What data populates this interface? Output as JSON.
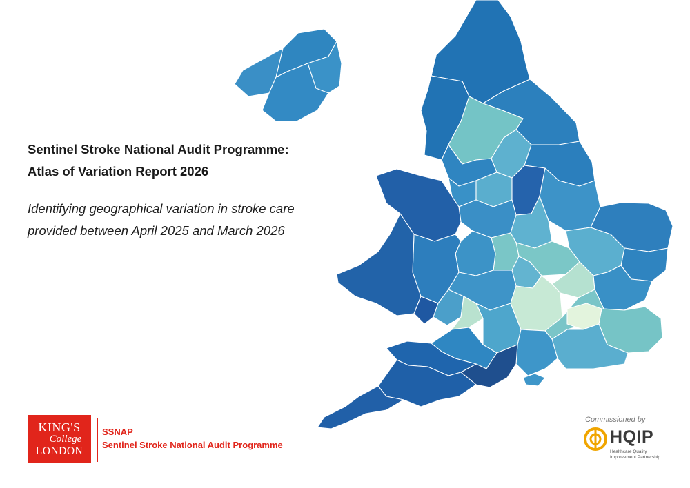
{
  "report": {
    "title_line1": "Sentinel Stroke National Audit Programme:",
    "title_line2": "Atlas of Variation Report 2026",
    "subtitle_line1": "Identifying geographical variation in stroke care",
    "subtitle_line2": "provided between April 2025 and March 2026"
  },
  "kings_logo": {
    "line1": "KING'S",
    "line2": "College",
    "line3": "LONDON"
  },
  "ssnap_logo": {
    "acronym": "SSNAP",
    "full_name": "Sentinel Stroke National Audit Programme"
  },
  "hqip_logo": {
    "commissioned_by": "Commissioned by",
    "name": "HQIP",
    "tagline_line1": "Healthcare Quality",
    "tagline_line2": "Improvement Partnership"
  },
  "colors": {
    "brand_red": "#e1251b",
    "map_darkest": "#1f4e8c",
    "map_dark": "#255ea6",
    "map_medium": "#2e7bbb",
    "map_mid_light": "#3f97c8",
    "map_light": "#5db0cf",
    "map_teal": "#76c5c6",
    "map_pale": "#b6e2d0",
    "map_palest": "#e3f4dd"
  }
}
